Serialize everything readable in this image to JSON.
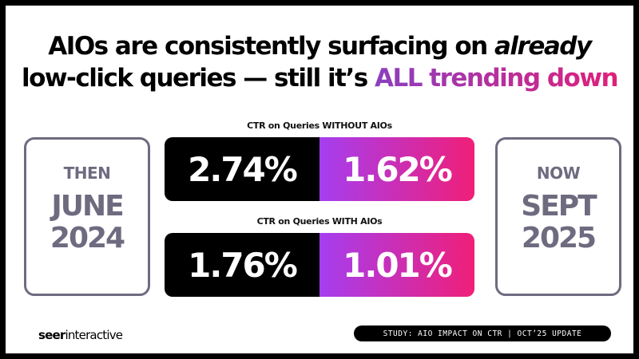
{
  "title": {
    "line1_pre": "AIOs are consistently surfacing on ",
    "line1_em": "already",
    "line2_pre": "low-click queries — still it’s ",
    "line2_accent": "ALL trending down"
  },
  "then": {
    "label": "THEN",
    "month": "JUNE",
    "year": "2024"
  },
  "now": {
    "label": "NOW",
    "month": "SEPT",
    "year": "2025"
  },
  "metrics": [
    {
      "caption": "CTR on Queries WITHOUT AIOs",
      "then": "2.74%",
      "now": "1.62%"
    },
    {
      "caption": "CTR on Queries WITH AIOs",
      "then": "1.76%",
      "now": "1.01%"
    }
  ],
  "footer": {
    "logo_bold": "seer",
    "logo_rest": "interactive",
    "study": "STUDY: AIO IMPACT ON CTR | OCT’25 UPDATE"
  },
  "colors": {
    "gradient_start": "#a53ef0",
    "gradient_end": "#f01f78",
    "box_border": "#6e6b80"
  }
}
